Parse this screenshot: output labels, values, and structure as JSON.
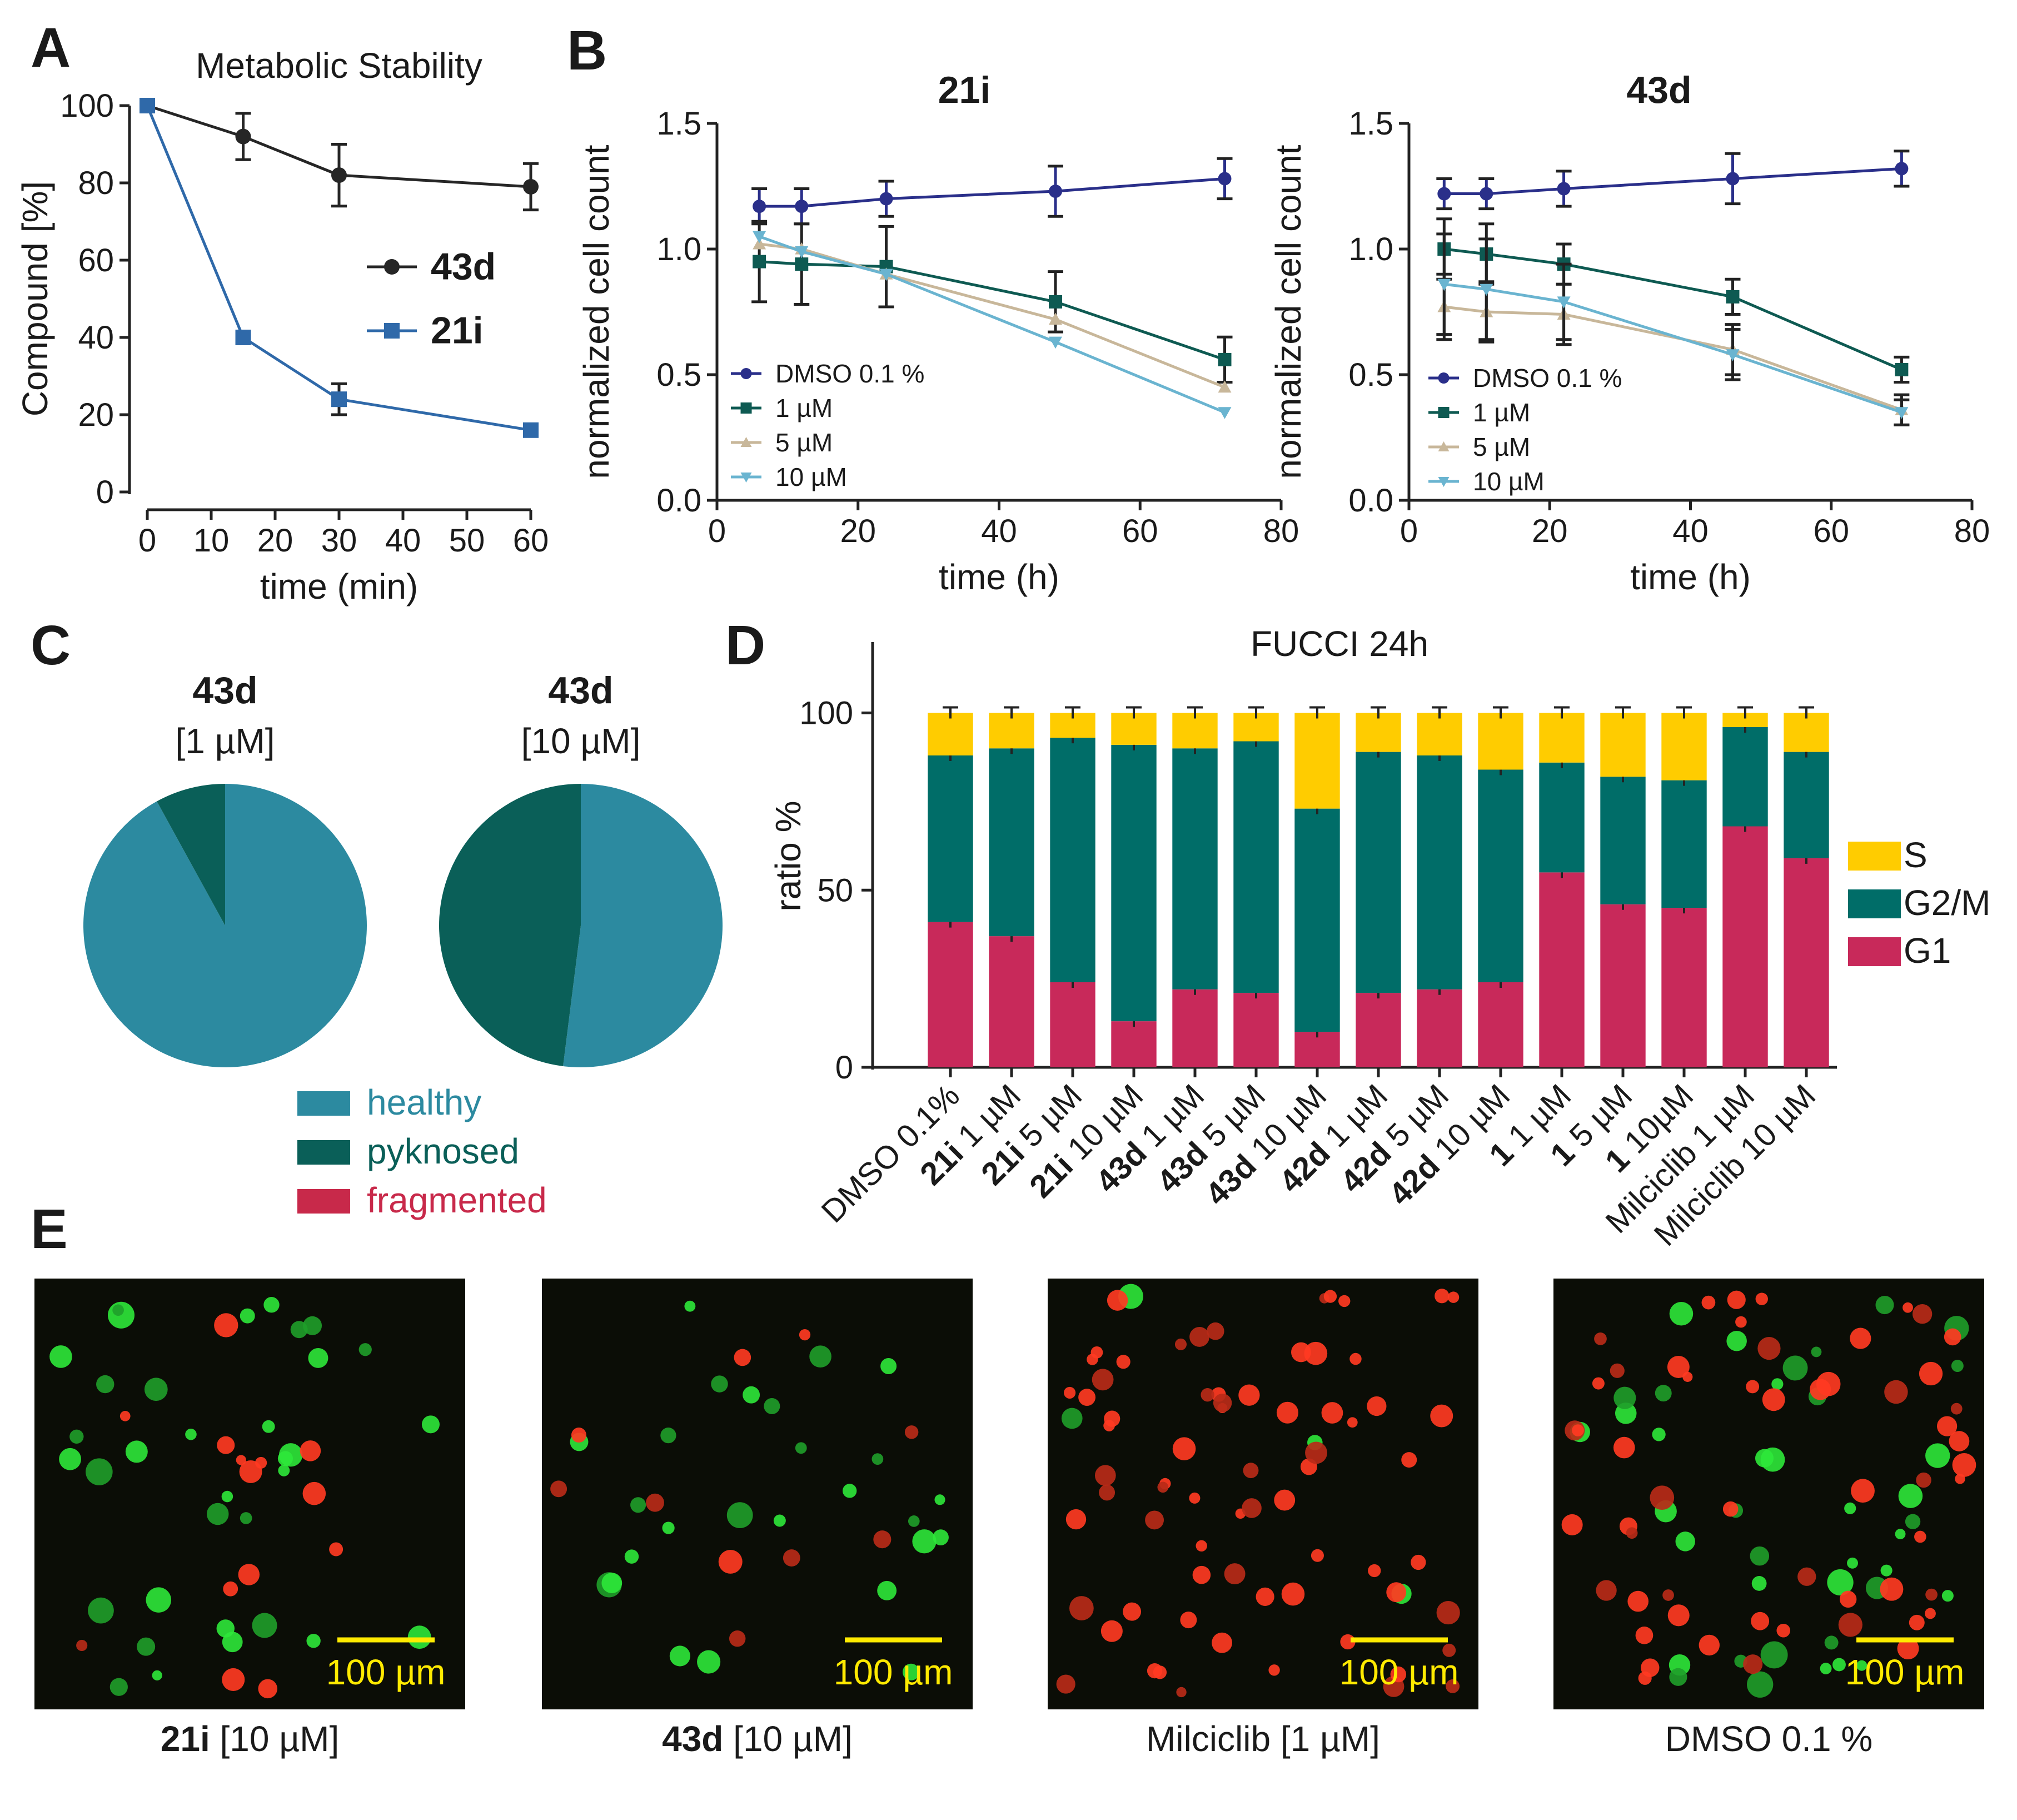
{
  "panels": {
    "A": "A",
    "B": "B",
    "C": "C",
    "D": "D",
    "E": "E"
  },
  "colors": {
    "c43d": "#262626",
    "c21i": "#2f69a9",
    "dmso": "#2a2f8a",
    "one": "#0e5a52",
    "five": "#c8b79a",
    "ten": "#6ab4d0",
    "healthy": "#2c8aa0",
    "pyknosed": "#0a5f58",
    "fragmented": "#c8294a",
    "S": "#ffcc00",
    "G2M": "#006d68",
    "G1": "#c8295a",
    "scalebar": "#ffea00"
  },
  "chart_data": [
    {
      "id": "A",
      "type": "line",
      "title": "Metabolic Stability",
      "xlabel": "time (min)",
      "ylabel": "Compound [%]",
      "xlim": [
        0,
        60
      ],
      "ylim": [
        0,
        100
      ],
      "xticks": [
        0,
        10,
        20,
        30,
        40,
        50,
        60
      ],
      "yticks": [
        0,
        20,
        40,
        60,
        80,
        100
      ],
      "series": [
        {
          "name": "43d",
          "bold": true,
          "color": "#262626",
          "marker": "circle",
          "x": [
            0,
            15,
            30,
            60
          ],
          "y": [
            100,
            92,
            82,
            79
          ],
          "err": [
            0,
            6,
            8,
            6
          ]
        },
        {
          "name": "21i",
          "bold": true,
          "color": "#2f69a9",
          "marker": "square",
          "x": [
            0,
            15,
            30,
            60
          ],
          "y": [
            100,
            40,
            24,
            16
          ],
          "err": [
            0,
            0,
            4,
            0
          ]
        }
      ]
    },
    {
      "id": "B1",
      "type": "line",
      "title": "21i",
      "xlabel": "time (h)",
      "ylabel": "normalized cell count",
      "xlim": [
        0,
        80
      ],
      "ylim": [
        0,
        1.5
      ],
      "xticks": [
        0,
        20,
        40,
        60,
        80
      ],
      "yticks": [
        "0.0",
        "0.5",
        "1.0",
        "1.5"
      ],
      "series": [
        {
          "name": "DMSO 0.1 %",
          "color": "#2a2f8a",
          "marker": "circle",
          "x": [
            6,
            12,
            24,
            48,
            72
          ],
          "y": [
            1.17,
            1.17,
            1.2,
            1.23,
            1.28
          ],
          "err": [
            0.07,
            0.07,
            0.07,
            0.1,
            0.08
          ]
        },
        {
          "name": "1 µM",
          "color": "#0e5a52",
          "marker": "square",
          "x": [
            6,
            12,
            24,
            48,
            72
          ],
          "y": [
            0.95,
            0.94,
            0.93,
            0.79,
            0.56
          ],
          "err": [
            0.16,
            0.16,
            0.16,
            0.12,
            0.09
          ]
        },
        {
          "name": "5 µM",
          "color": "#c8b79a",
          "marker": "triangle",
          "x": [
            6,
            12,
            24,
            48,
            72
          ],
          "y": [
            1.02,
            1.0,
            0.9,
            0.72,
            0.45
          ],
          "err": [
            0,
            0,
            0,
            0,
            0
          ]
        },
        {
          "name": "10 µM",
          "color": "#6ab4d0",
          "marker": "tridown",
          "x": [
            6,
            12,
            24,
            48,
            72
          ],
          "y": [
            1.05,
            0.99,
            0.9,
            0.63,
            0.35
          ],
          "err": [
            0,
            0,
            0,
            0,
            0
          ]
        }
      ]
    },
    {
      "id": "B2",
      "type": "line",
      "title": "43d",
      "xlabel": "time (h)",
      "ylabel": "normalized cell count",
      "xlim": [
        0,
        80
      ],
      "ylim": [
        0,
        1.5
      ],
      "xticks": [
        0,
        20,
        40,
        60,
        80
      ],
      "yticks": [
        "0.0",
        "0.5",
        "1.0",
        "1.5"
      ],
      "series": [
        {
          "name": "DMSO 0.1 %",
          "color": "#2a2f8a",
          "marker": "circle",
          "x": [
            5,
            11,
            22,
            46,
            70
          ],
          "y": [
            1.22,
            1.22,
            1.24,
            1.28,
            1.32
          ],
          "err": [
            0.06,
            0.06,
            0.07,
            0.1,
            0.07
          ]
        },
        {
          "name": "1 µM",
          "color": "#0e5a52",
          "marker": "square",
          "x": [
            5,
            11,
            22,
            46,
            70
          ],
          "y": [
            1.0,
            0.98,
            0.94,
            0.81,
            0.52
          ],
          "err": [
            0.12,
            0.12,
            0.08,
            0.07,
            0.05
          ]
        },
        {
          "name": "5 µM",
          "color": "#c8b79a",
          "marker": "triangle",
          "x": [
            5,
            11,
            22,
            46,
            70
          ],
          "y": [
            0.77,
            0.75,
            0.74,
            0.6,
            0.36
          ],
          "err": [
            0.13,
            0.12,
            0.12,
            0.1,
            0.06
          ]
        },
        {
          "name": "10 µM",
          "color": "#6ab4d0",
          "marker": "tridown",
          "x": [
            5,
            11,
            22,
            46,
            70
          ],
          "y": [
            0.86,
            0.84,
            0.79,
            0.58,
            0.35
          ],
          "err": [
            0.2,
            0.2,
            0.15,
            0.1,
            0.05
          ]
        }
      ]
    },
    {
      "id": "C1",
      "type": "pie",
      "title": "43d",
      "subtitle": "[1 µM]",
      "slices": [
        {
          "name": "healthy",
          "value": 92,
          "color": "#2c8aa0"
        },
        {
          "name": "pyknosed",
          "value": 8,
          "color": "#0a5f58"
        }
      ]
    },
    {
      "id": "C2",
      "type": "pie",
      "title": "43d",
      "subtitle": "[10 µM]",
      "slices": [
        {
          "name": "healthy",
          "value": 52,
          "color": "#2c8aa0"
        },
        {
          "name": "pyknosed",
          "value": 48,
          "color": "#0a5f58"
        }
      ]
    },
    {
      "id": "D",
      "type": "bar",
      "stacked": true,
      "title": "FUCCI 24h",
      "ylabel": "ratio %",
      "ylim": [
        0,
        100
      ],
      "yticks": [
        0,
        50,
        100
      ],
      "categories": [
        {
          "bold": "",
          "rest": "DMSO 0.1%"
        },
        {
          "bold": "21i",
          "rest": " 1 µM"
        },
        {
          "bold": "21i",
          "rest": " 5 µM"
        },
        {
          "bold": "21i",
          "rest": " 10 µM"
        },
        {
          "bold": "43d",
          "rest": " 1 µM"
        },
        {
          "bold": "43d",
          "rest": " 5 µM"
        },
        {
          "bold": "43d",
          "rest": " 10 µM"
        },
        {
          "bold": "42d",
          "rest": " 1 µM"
        },
        {
          "bold": "42d",
          "rest": " 5 µM"
        },
        {
          "bold": "42d",
          "rest": " 10 µM"
        },
        {
          "bold": "1",
          "rest": " 1 µM"
        },
        {
          "bold": "1",
          "rest": " 5 µM"
        },
        {
          "bold": "1",
          "rest": " 10µM"
        },
        {
          "bold": "",
          "rest": "Milciclib 1 µM"
        },
        {
          "bold": "",
          "rest": "Milciclib 10 µM"
        }
      ],
      "series": [
        {
          "name": "G1",
          "color": "#c8295a",
          "values": [
            41,
            37,
            24,
            13,
            22,
            21,
            10,
            21,
            22,
            24,
            55,
            46,
            45,
            68,
            59
          ]
        },
        {
          "name": "G2/M",
          "color": "#006d68",
          "values": [
            47,
            53,
            69,
            78,
            68,
            71,
            63,
            68,
            66,
            60,
            31,
            36,
            36,
            28,
            30
          ]
        },
        {
          "name": "S",
          "color": "#ffcc00",
          "values": [
            12,
            10,
            7,
            9,
            10,
            8,
            27,
            11,
            12,
            16,
            14,
            18,
            19,
            4,
            11
          ]
        }
      ],
      "legend": [
        "S",
        "G2/M",
        "G1"
      ]
    }
  ],
  "pie_legend": [
    {
      "label": "healthy",
      "color": "#2c8aa0"
    },
    {
      "label": "pyknosed",
      "color": "#0a5f58"
    },
    {
      "label": "fragmented",
      "color": "#c8294a"
    }
  ],
  "micrographs": [
    {
      "caption_bold": "21i",
      "caption_rest": " [10 µM]",
      "scale": "100 µm"
    },
    {
      "caption_bold": "43d",
      "caption_rest": " [10 µM]",
      "scale": "100 µm"
    },
    {
      "caption_bold": "",
      "caption_rest": "Milciclib [1 µM]",
      "scale": "100 µm"
    },
    {
      "caption_bold": "",
      "caption_rest": "DMSO 0.1 %",
      "scale": "100 µm"
    }
  ]
}
